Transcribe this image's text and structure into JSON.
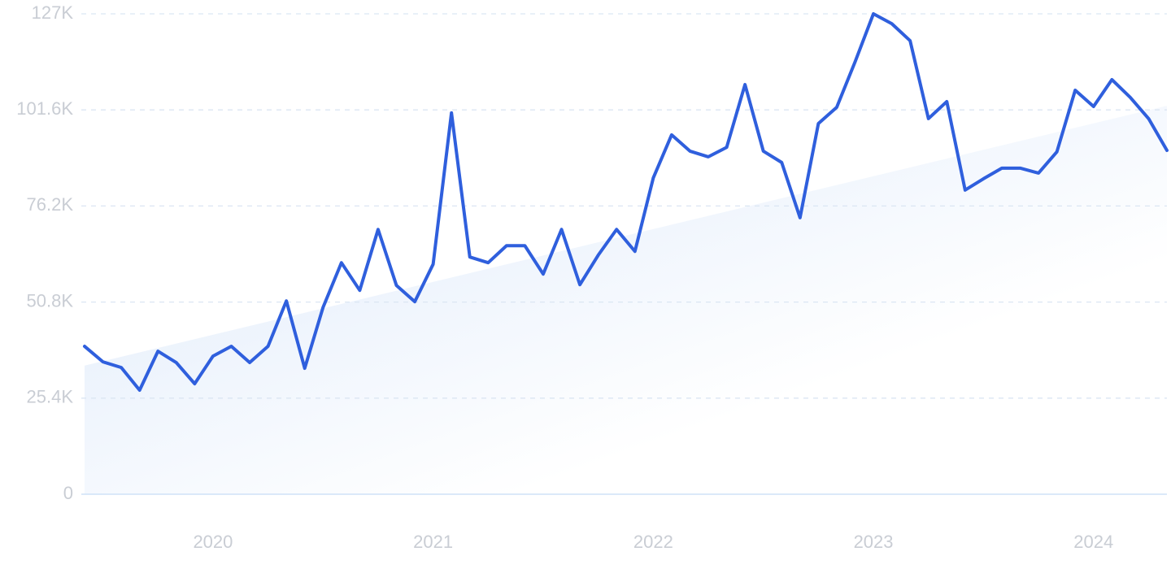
{
  "chart_data": {
    "type": "line",
    "categories": [
      null,
      null,
      null,
      null,
      null,
      null,
      null,
      "2020",
      null,
      null,
      null,
      null,
      null,
      null,
      null,
      null,
      null,
      null,
      null,
      "2021",
      null,
      null,
      null,
      null,
      null,
      null,
      null,
      null,
      null,
      null,
      null,
      "2022",
      null,
      null,
      null,
      null,
      null,
      null,
      null,
      null,
      null,
      null,
      null,
      "2023",
      null,
      null,
      null,
      null,
      null,
      null,
      null,
      null,
      null,
      null,
      null,
      "2024",
      null,
      null,
      null,
      null
    ],
    "series": [
      {
        "color": "#2f5fdd",
        "values": [
          39100,
          35000,
          33500,
          27500,
          37800,
          34800,
          29200,
          36500,
          39100,
          34800,
          39100,
          51100,
          33300,
          49400,
          61200,
          53900,
          70000,
          55200,
          50900,
          60800,
          100800,
          62700,
          61200,
          65700,
          65700,
          58200,
          70000,
          55400,
          63200,
          70000,
          64200,
          83600,
          95000,
          90700,
          89200,
          91700,
          108300,
          90700,
          87700,
          73100,
          98000,
          102300,
          114300,
          127000,
          124400,
          119900,
          99300,
          103800,
          80400,
          83400,
          86200,
          86200,
          84900,
          90500,
          106800,
          102500,
          109600,
          104900,
          99300,
          90900
        ]
      }
    ],
    "trend": {
      "values": [
        34000,
        102700
      ],
      "color": "#dbe8fa"
    },
    "ylim": [
      0,
      127000
    ],
    "yticks": [
      0,
      {
        "value": 25400,
        "label": "25.4K"
      },
      {
        "value": 50800,
        "label": "50.8K"
      },
      {
        "value": 76200,
        "label": "76.2K"
      },
      {
        "value": 101600,
        "label": "101.6K"
      },
      {
        "value": 127000,
        "label": "127K"
      }
    ],
    "grid": true
  }
}
